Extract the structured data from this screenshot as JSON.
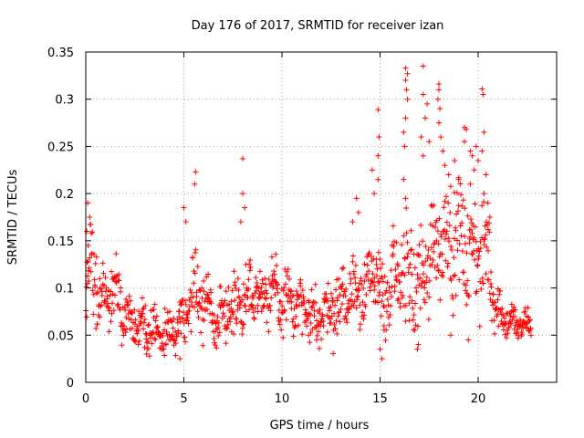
{
  "chart_data": {
    "type": "scatter",
    "title": "Day 176 of 2017, SRMTID for receiver izan",
    "xlabel": "GPS time / hours",
    "ylabel": "SRMTID / TECUs",
    "xlim": [
      0,
      24
    ],
    "ylim": [
      0,
      0.35
    ],
    "xticks": [
      0,
      5,
      10,
      15,
      20
    ],
    "xtick_labels": [
      "0",
      "5",
      "10",
      "15",
      "20"
    ],
    "yticks": [
      0,
      0.05,
      0.1,
      0.15,
      0.2,
      0.25,
      0.3,
      0.35
    ],
    "ytick_labels": [
      "0",
      "0.05",
      "0.1",
      "0.15",
      "0.2",
      "0.25",
      "0.3",
      "0.35"
    ],
    "grid": true,
    "marker": "+",
    "color": "#ff0000",
    "series": [
      {
        "name": "SRMTID",
        "profile": [
          {
            "x": 0.0,
            "y": 0.09,
            "spread": 0.03
          },
          {
            "x": 0.3,
            "y": 0.12,
            "spread": 0.05
          },
          {
            "x": 0.8,
            "y": 0.08,
            "spread": 0.03
          },
          {
            "x": 1.5,
            "y": 0.1,
            "spread": 0.03
          },
          {
            "x": 2.0,
            "y": 0.07,
            "spread": 0.025
          },
          {
            "x": 3.0,
            "y": 0.055,
            "spread": 0.02
          },
          {
            "x": 4.0,
            "y": 0.05,
            "spread": 0.02
          },
          {
            "x": 4.8,
            "y": 0.06,
            "spread": 0.02
          },
          {
            "x": 5.5,
            "y": 0.1,
            "spread": 0.04
          },
          {
            "x": 6.5,
            "y": 0.065,
            "spread": 0.02
          },
          {
            "x": 7.5,
            "y": 0.08,
            "spread": 0.03
          },
          {
            "x": 8.5,
            "y": 0.1,
            "spread": 0.03
          },
          {
            "x": 9.5,
            "y": 0.09,
            "spread": 0.03
          },
          {
            "x": 10.5,
            "y": 0.085,
            "spread": 0.025
          },
          {
            "x": 11.5,
            "y": 0.065,
            "spread": 0.025
          },
          {
            "x": 12.5,
            "y": 0.08,
            "spread": 0.03
          },
          {
            "x": 13.5,
            "y": 0.095,
            "spread": 0.03
          },
          {
            "x": 14.5,
            "y": 0.11,
            "spread": 0.04
          },
          {
            "x": 15.5,
            "y": 0.09,
            "spread": 0.04
          },
          {
            "x": 16.3,
            "y": 0.12,
            "spread": 0.05
          },
          {
            "x": 17.0,
            "y": 0.1,
            "spread": 0.05
          },
          {
            "x": 17.8,
            "y": 0.15,
            "spread": 0.05
          },
          {
            "x": 18.5,
            "y": 0.16,
            "spread": 0.05
          },
          {
            "x": 19.5,
            "y": 0.14,
            "spread": 0.05
          },
          {
            "x": 20.5,
            "y": 0.13,
            "spread": 0.05
          },
          {
            "x": 21.0,
            "y": 0.075,
            "spread": 0.02
          },
          {
            "x": 22.0,
            "y": 0.06,
            "spread": 0.015
          },
          {
            "x": 22.7,
            "y": 0.06,
            "spread": 0.015
          }
        ],
        "dense_from": 0.0,
        "dense_to": 22.7,
        "dense_step": 0.02,
        "spikes": [
          {
            "x": 0.1,
            "y": 0.19
          },
          {
            "x": 0.2,
            "y": 0.175
          },
          {
            "x": 0.05,
            "y": 0.16
          },
          {
            "x": 0.12,
            "y": 0.145
          },
          {
            "x": 5.6,
            "y": 0.223
          },
          {
            "x": 5.55,
            "y": 0.21
          },
          {
            "x": 5.0,
            "y": 0.185
          },
          {
            "x": 5.1,
            "y": 0.17
          },
          {
            "x": 8.0,
            "y": 0.237
          },
          {
            "x": 8.0,
            "y": 0.2
          },
          {
            "x": 8.1,
            "y": 0.185
          },
          {
            "x": 7.9,
            "y": 0.17
          },
          {
            "x": 14.9,
            "y": 0.289
          },
          {
            "x": 14.95,
            "y": 0.26
          },
          {
            "x": 14.9,
            "y": 0.24
          },
          {
            "x": 14.9,
            "y": 0.215
          },
          {
            "x": 14.6,
            "y": 0.225
          },
          {
            "x": 14.7,
            "y": 0.2
          },
          {
            "x": 16.3,
            "y": 0.333
          },
          {
            "x": 16.4,
            "y": 0.327
          },
          {
            "x": 16.3,
            "y": 0.32
          },
          {
            "x": 16.35,
            "y": 0.31
          },
          {
            "x": 16.4,
            "y": 0.3
          },
          {
            "x": 16.3,
            "y": 0.28
          },
          {
            "x": 16.2,
            "y": 0.265
          },
          {
            "x": 16.25,
            "y": 0.25
          },
          {
            "x": 16.2,
            "y": 0.215
          },
          {
            "x": 16.3,
            "y": 0.195
          },
          {
            "x": 17.2,
            "y": 0.335
          },
          {
            "x": 17.2,
            "y": 0.305
          },
          {
            "x": 17.4,
            "y": 0.295
          },
          {
            "x": 17.3,
            "y": 0.28
          },
          {
            "x": 17.1,
            "y": 0.26
          },
          {
            "x": 17.5,
            "y": 0.255
          },
          {
            "x": 17.2,
            "y": 0.24
          },
          {
            "x": 18.0,
            "y": 0.316
          },
          {
            "x": 18.0,
            "y": 0.31
          },
          {
            "x": 17.95,
            "y": 0.3
          },
          {
            "x": 18.05,
            "y": 0.29
          },
          {
            "x": 18.0,
            "y": 0.275
          },
          {
            "x": 18.1,
            "y": 0.26
          },
          {
            "x": 18.2,
            "y": 0.245
          },
          {
            "x": 18.3,
            "y": 0.23
          },
          {
            "x": 18.5,
            "y": 0.22
          },
          {
            "x": 18.8,
            "y": 0.235
          },
          {
            "x": 19.0,
            "y": 0.215
          },
          {
            "x": 19.3,
            "y": 0.27
          },
          {
            "x": 19.4,
            "y": 0.268
          },
          {
            "x": 19.3,
            "y": 0.255
          },
          {
            "x": 19.6,
            "y": 0.245
          },
          {
            "x": 19.7,
            "y": 0.24
          },
          {
            "x": 19.8,
            "y": 0.225
          },
          {
            "x": 19.6,
            "y": 0.21
          },
          {
            "x": 19.9,
            "y": 0.25
          },
          {
            "x": 20.0,
            "y": 0.235
          },
          {
            "x": 20.2,
            "y": 0.311
          },
          {
            "x": 20.25,
            "y": 0.305
          },
          {
            "x": 20.3,
            "y": 0.265
          },
          {
            "x": 20.2,
            "y": 0.245
          },
          {
            "x": 20.4,
            "y": 0.22
          },
          {
            "x": 20.3,
            "y": 0.2
          },
          {
            "x": 20.5,
            "y": 0.19
          },
          {
            "x": 20.6,
            "y": 0.175
          },
          {
            "x": 13.8,
            "y": 0.195
          },
          {
            "x": 13.9,
            "y": 0.18
          },
          {
            "x": 13.6,
            "y": 0.17
          },
          {
            "x": 15.2,
            "y": 0.06
          },
          {
            "x": 15.0,
            "y": 0.035
          },
          {
            "x": 15.1,
            "y": 0.025
          },
          {
            "x": 16.9,
            "y": 0.035
          },
          {
            "x": 16.95,
            "y": 0.04
          },
          {
            "x": 18.6,
            "y": 0.05
          },
          {
            "x": 19.5,
            "y": 0.045
          },
          {
            "x": 4.8,
            "y": 0.025
          },
          {
            "x": 3.1,
            "y": 0.03
          }
        ]
      }
    ]
  }
}
